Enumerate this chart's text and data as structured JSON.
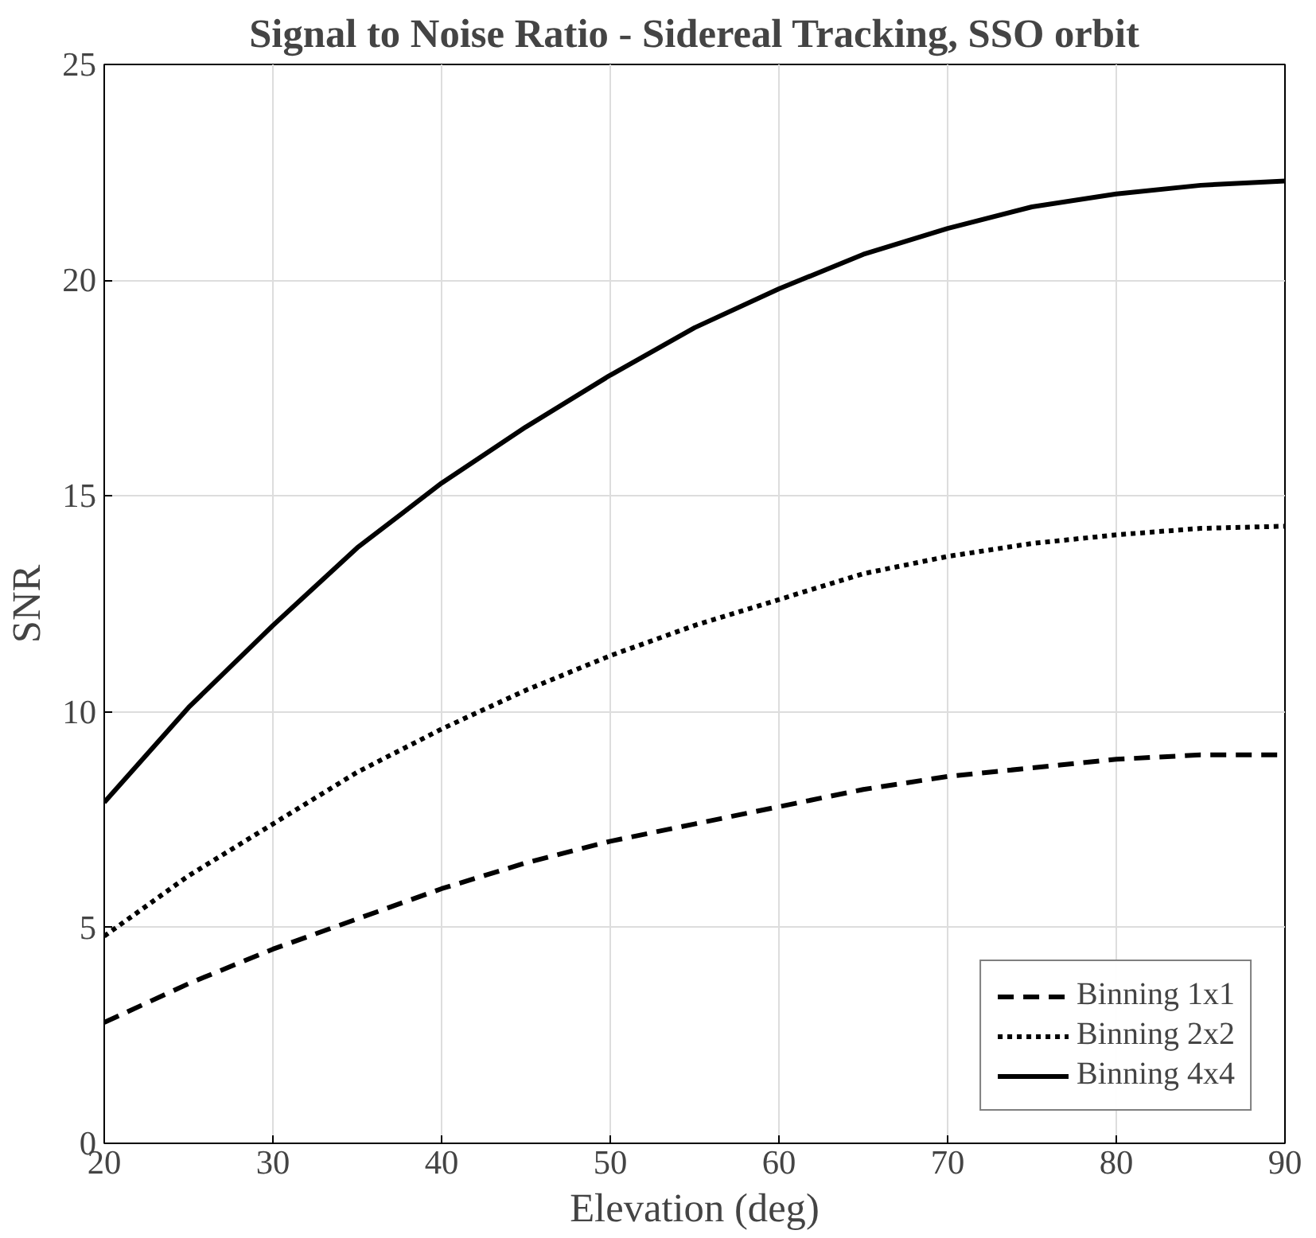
{
  "chart_data": {
    "type": "line",
    "title": "Signal to Noise Ratio - Sidereal Tracking, SSO orbit",
    "xlabel": "Elevation (deg)",
    "ylabel": "SNR",
    "x": [
      20,
      25,
      30,
      35,
      40,
      45,
      50,
      55,
      60,
      65,
      70,
      75,
      80,
      85,
      90
    ],
    "series": [
      {
        "name": "Binning 1x1",
        "color": "#000000",
        "line_style": "dashed",
        "values": [
          2.8,
          3.7,
          4.5,
          5.2,
          5.9,
          6.5,
          7.0,
          7.4,
          7.8,
          8.2,
          8.5,
          8.7,
          8.9,
          9.0,
          9.0
        ]
      },
      {
        "name": "Binning 2x2",
        "color": "#000000",
        "line_style": "dotted",
        "values": [
          4.8,
          6.2,
          7.4,
          8.6,
          9.6,
          10.5,
          11.3,
          12.0,
          12.6,
          13.2,
          13.6,
          13.9,
          14.1,
          14.25,
          14.3
        ]
      },
      {
        "name": "Binning 4x4",
        "color": "#000000",
        "line_style": "solid",
        "values": [
          7.9,
          10.1,
          12.0,
          13.8,
          15.3,
          16.6,
          17.8,
          18.9,
          19.8,
          20.6,
          21.2,
          21.7,
          22.0,
          22.2,
          22.3
        ]
      }
    ],
    "xlim": [
      20,
      90
    ],
    "xticks": [
      20,
      30,
      40,
      50,
      60,
      70,
      80,
      90
    ],
    "ylim": [
      0,
      25
    ],
    "yticks": [
      0,
      5,
      10,
      15,
      20,
      25
    ],
    "grid": true,
    "legend": "bottom right"
  }
}
